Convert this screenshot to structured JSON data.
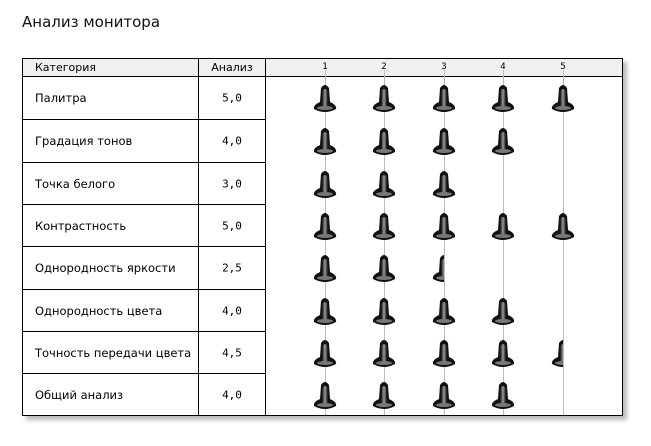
{
  "title": "Анализ монитора",
  "headers": {
    "category": "Категория",
    "score": "Анализ"
  },
  "scale_ticks": [
    "1",
    "2",
    "3",
    "4",
    "5"
  ],
  "rating_icon": "bell-icon",
  "rows": [
    {
      "category": "Палитра",
      "score": "5,0",
      "value": 5.0
    },
    {
      "category": "Градация тонов",
      "score": "4,0",
      "value": 4.0
    },
    {
      "category": "Точка белого",
      "score": "3,0",
      "value": 3.0
    },
    {
      "category": "Контрастность",
      "score": "5,0",
      "value": 5.0
    },
    {
      "category": "Однородность яркости",
      "score": "2,5",
      "value": 2.5
    },
    {
      "category": "Однородность цвета",
      "score": "4,0",
      "value": 4.0
    },
    {
      "category": "Точность передачи цвета",
      "score": "4,5",
      "value": 4.5
    },
    {
      "category": "Общий анализ",
      "score": "4,0",
      "value": 4.0
    }
  ]
}
